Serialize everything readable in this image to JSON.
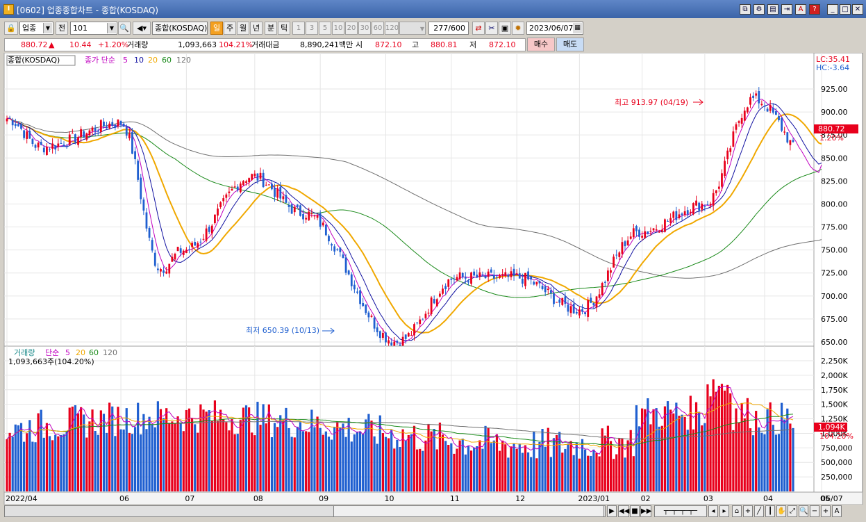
{
  "window": {
    "title": "[0602] 업종종합차트 - 종합(KOSDAQ)"
  },
  "toolbar": {
    "market": "업종",
    "prev_label": "전",
    "code": "101",
    "name": "종합(KOSDAQ)",
    "periods": [
      "일",
      "주",
      "월",
      "년",
      "분",
      "틱"
    ],
    "minute_steps": [
      "1",
      "3",
      "5",
      "10",
      "20",
      "30",
      "60",
      "120"
    ],
    "count": "277",
    "count_total": "/600",
    "date": "2023/06/07"
  },
  "info": {
    "price": "880.72",
    "arrow": "▲",
    "change": "10.44",
    "change_pct": "+1.20%",
    "volume_label": "거래량",
    "volume": "1,093,663",
    "volume_pct": "104.21%",
    "amount_label": "거래대금",
    "amount": "8,890,241백만",
    "open_label": "시",
    "open": "872.10",
    "high_label": "고",
    "high": "880.81",
    "low_label": "저",
    "low": "872.10",
    "buy_label": "매수",
    "sell_label": "매도"
  },
  "price_panel": {
    "name_label": "종합(KOSDAQ)",
    "ma_label": "종가 단순",
    "ma_periods": [
      "5",
      "10",
      "20",
      "60",
      "120"
    ],
    "lc": "LC:35.41",
    "hc": "HC:-3.64",
    "high_note": "최고 913.97 (04/19)",
    "low_note": "최저 650.39 (10/13)",
    "last_value": "880.72",
    "last_pct": "1.20%"
  },
  "volume_panel": {
    "title": "거래량",
    "ma_label": "단순",
    "ma_periods": [
      "5",
      "20",
      "60",
      "120"
    ],
    "summary": "1,093,663주(104.20%)",
    "last_value": "1,094K",
    "last_pct": "104.20%"
  },
  "colors": {
    "up": "#e8001c",
    "down": "#1f5fd0",
    "ma5": "#c000c0",
    "ma10": "#1010a0",
    "ma20": "#f0a800",
    "ma60": "#1a8a1a",
    "ma120": "#707070"
  },
  "chart_data": {
    "type": "candlestick",
    "title": "종합(KOSDAQ)",
    "y_axis": {
      "ticks": [
        925,
        900,
        875,
        850,
        825,
        800,
        775,
        750,
        725,
        700,
        675,
        650
      ],
      "labels": [
        "925.00",
        "900.00",
        "875.00",
        "850.00",
        "825.00",
        "800.00",
        "775.00",
        "750.00",
        "725.00",
        "700.00",
        "675.00",
        "650.00"
      ]
    },
    "volume_axis": {
      "ticks": [
        2250000,
        2000000,
        1750000,
        1500000,
        1250000,
        1000000,
        750000,
        500000,
        250000
      ],
      "labels": [
        "2,250K",
        "2,000K",
        "1,750K",
        "1,500K",
        "1,250K",
        "1,000K",
        "750,000",
        "500,000",
        "250,000"
      ]
    },
    "x_labels": [
      "2022/04",
      "06",
      "07",
      "08",
      "09",
      "10",
      "11",
      "12",
      "2023/01",
      "02",
      "03",
      "04",
      "05",
      "06",
      "06/07"
    ],
    "key_points": [
      {
        "date": "2022/04",
        "close": 893
      },
      {
        "date": "2022/05",
        "close": 862
      },
      {
        "date": "2022/06 early",
        "close": 888
      },
      {
        "date": "2022/06 late",
        "close": 730
      },
      {
        "date": "2022/07",
        "close": 750
      },
      {
        "date": "2022/08",
        "close": 830
      },
      {
        "date": "2022/09",
        "close": 790
      },
      {
        "date": "2022/10/13",
        "close": 650.39
      },
      {
        "date": "2022/11",
        "close": 720
      },
      {
        "date": "2022/12",
        "close": 720
      },
      {
        "date": "2023/01",
        "close": 685
      },
      {
        "date": "2023/02",
        "close": 770
      },
      {
        "date": "2023/03",
        "close": 800
      },
      {
        "date": "2023/04/19",
        "close": 913.97
      },
      {
        "date": "2023/05",
        "close": 830
      },
      {
        "date": "2023/06/07",
        "close": 880.72
      }
    ],
    "volume_ma_last": 1093663
  }
}
